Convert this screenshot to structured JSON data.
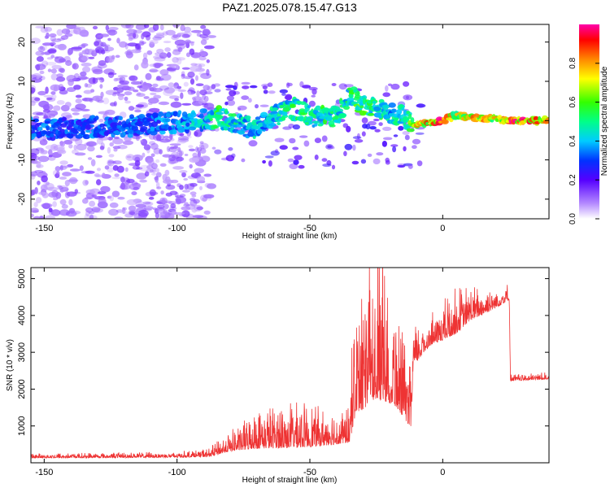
{
  "figure": {
    "title": "PAZ1.2025.078.15.47.G13"
  },
  "chart_data": [
    {
      "type": "heatmap",
      "title": "PAZ1.2025.078.15.47.G13",
      "xlabel": "Height of straight line (km)",
      "ylabel": "Frequency (Hz)",
      "xlim": [
        -155,
        40
      ],
      "ylim": [
        -25,
        24.5
      ],
      "xticks": [
        -150,
        -100,
        -50,
        0
      ],
      "yticks": [
        -20,
        -10,
        0,
        10,
        20
      ],
      "colorbar": {
        "label": "Normalized spectral amplitude",
        "range": [
          0,
          1
        ],
        "ticks": [
          0,
          0.2,
          0.4,
          0.6,
          0.8
        ]
      },
      "ridge": [
        {
          "x": -152,
          "y": -2.0,
          "amp": 0.35
        },
        {
          "x": -140,
          "y": -2.0,
          "amp": 0.35
        },
        {
          "x": -130,
          "y": -1.5,
          "amp": 0.35
        },
        {
          "x": -120,
          "y": -1.5,
          "amp": 0.35
        },
        {
          "x": -110,
          "y": -1.0,
          "amp": 0.35
        },
        {
          "x": -100,
          "y": -0.5,
          "amp": 0.4
        },
        {
          "x": -90,
          "y": 0.0,
          "amp": 0.45
        },
        {
          "x": -85,
          "y": 1.0,
          "amp": 0.55
        },
        {
          "x": -80,
          "y": 0.0,
          "amp": 0.5
        },
        {
          "x": -75,
          "y": -1.5,
          "amp": 0.5
        },
        {
          "x": -70,
          "y": -2.0,
          "amp": 0.45
        },
        {
          "x": -65,
          "y": 1.0,
          "amp": 0.45
        },
        {
          "x": -60,
          "y": 2.0,
          "amp": 0.5
        },
        {
          "x": -55,
          "y": 3.0,
          "amp": 0.55
        },
        {
          "x": -50,
          "y": 1.0,
          "amp": 0.5
        },
        {
          "x": -45,
          "y": 1.5,
          "amp": 0.55
        },
        {
          "x": -40,
          "y": 1.0,
          "amp": 0.5
        },
        {
          "x": -35,
          "y": 6.0,
          "amp": 0.55
        },
        {
          "x": -30,
          "y": 4.0,
          "amp": 0.6
        },
        {
          "x": -25,
          "y": 3.0,
          "amp": 0.55
        },
        {
          "x": -20,
          "y": 2.0,
          "amp": 0.45
        },
        {
          "x": -15,
          "y": 1.0,
          "amp": 0.5
        },
        {
          "x": -10,
          "y": -1.0,
          "amp": 0.75
        },
        {
          "x": -5,
          "y": -0.5,
          "amp": 0.85
        },
        {
          "x": 0,
          "y": 0.0,
          "amp": 0.95
        },
        {
          "x": 5,
          "y": 1.5,
          "amp": 0.7
        },
        {
          "x": 10,
          "y": 1.0,
          "amp": 0.8
        },
        {
          "x": 15,
          "y": 0.5,
          "amp": 0.8
        },
        {
          "x": 20,
          "y": 0.5,
          "amp": 0.75
        },
        {
          "x": 25,
          "y": 0.0,
          "amp": 0.95
        },
        {
          "x": 30,
          "y": 0.0,
          "amp": 0.9
        },
        {
          "x": 35,
          "y": 0.0,
          "amp": 0.85
        },
        {
          "x": 40,
          "y": 0.0,
          "amp": 0.8
        }
      ]
    },
    {
      "type": "line",
      "xlabel": "Height of straight line (km)",
      "ylabel": "SNR (10 * v/v)",
      "xlim": [
        -155,
        40
      ],
      "ylim": [
        0,
        5300
      ],
      "xticks": [
        -150,
        -100,
        -50,
        0
      ],
      "yticks": [
        1000,
        2000,
        3000,
        4000,
        5000
      ],
      "series": [
        {
          "color": "#ee3333",
          "envelope": [
            {
              "x": -155,
              "base": 150,
              "spread": 80
            },
            {
              "x": -100,
              "base": 170,
              "spread": 100
            },
            {
              "x": -88,
              "base": 200,
              "spread": 150
            },
            {
              "x": -80,
              "base": 400,
              "spread": 350
            },
            {
              "x": -70,
              "base": 550,
              "spread": 650
            },
            {
              "x": -60,
              "base": 600,
              "spread": 800
            },
            {
              "x": -50,
              "base": 620,
              "spread": 750
            },
            {
              "x": -40,
              "base": 650,
              "spread": 600
            },
            {
              "x": -35,
              "base": 700,
              "spread": 600
            },
            {
              "x": -33,
              "base": 1700,
              "spread": 1700
            },
            {
              "x": -25,
              "base": 2300,
              "spread": 2200
            },
            {
              "x": -18,
              "base": 2000,
              "spread": 1800
            },
            {
              "x": -12,
              "base": 1200,
              "spread": 1000
            },
            {
              "x": -11,
              "base": 2800,
              "spread": 700
            },
            {
              "x": -5,
              "base": 3300,
              "spread": 500
            },
            {
              "x": 0,
              "base": 3500,
              "spread": 700
            },
            {
              "x": 5,
              "base": 3700,
              "spread": 800
            },
            {
              "x": 10,
              "base": 4000,
              "spread": 600
            },
            {
              "x": 20,
              "base": 4300,
              "spread": 400
            },
            {
              "x": 25,
              "base": 4500,
              "spread": 300
            },
            {
              "x": 25.5,
              "base": 2250,
              "spread": 120
            },
            {
              "x": 40,
              "base": 2300,
              "spread": 120
            }
          ]
        }
      ]
    }
  ]
}
